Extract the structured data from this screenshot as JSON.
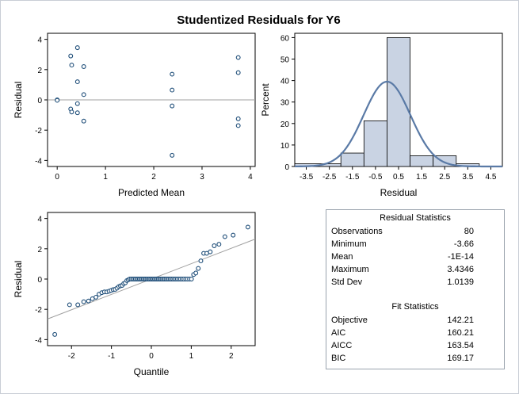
{
  "title": "Studentized Residuals for Y6",
  "colors": {
    "marker": "#1f4e79",
    "axis": "#000000",
    "ref_line": "#a0a0a0",
    "bar_fill": "#c9d3e3",
    "bar_stroke": "#000000",
    "density": "#5a7aa6"
  },
  "chart_data": [
    {
      "type": "scatter",
      "name": "residual-vs-predicted",
      "xlabel": "Predicted Mean",
      "ylabel": "Residual",
      "xlim": [
        -0.2,
        4.1
      ],
      "ylim": [
        -4.4,
        4.4
      ],
      "xticks": [
        0,
        1,
        2,
        3,
        4
      ],
      "yticks": [
        -4,
        -2,
        0,
        2,
        4
      ],
      "reference_line_y": 0,
      "points": [
        {
          "x": 0.0,
          "y": 0.0
        },
        {
          "x": 0.0,
          "y": -0.03
        },
        {
          "x": 0.28,
          "y": 2.9
        },
        {
          "x": 0.3,
          "y": 2.3
        },
        {
          "x": 0.28,
          "y": -0.6
        },
        {
          "x": 0.3,
          "y": -0.8
        },
        {
          "x": 0.42,
          "y": 3.45
        },
        {
          "x": 0.42,
          "y": 1.2
        },
        {
          "x": 0.42,
          "y": -0.25
        },
        {
          "x": 0.42,
          "y": -0.85
        },
        {
          "x": 0.55,
          "y": 2.2
        },
        {
          "x": 0.55,
          "y": 0.35
        },
        {
          "x": 0.55,
          "y": -1.4
        },
        {
          "x": 2.38,
          "y": 1.7
        },
        {
          "x": 2.38,
          "y": 0.65
        },
        {
          "x": 2.38,
          "y": -0.4
        },
        {
          "x": 2.38,
          "y": -3.66
        },
        {
          "x": 3.75,
          "y": 2.8
        },
        {
          "x": 3.75,
          "y": 1.8
        },
        {
          "x": 3.75,
          "y": -1.25
        },
        {
          "x": 3.75,
          "y": -1.7
        }
      ]
    },
    {
      "type": "bar",
      "name": "residual-histogram",
      "xlabel": "Residual",
      "ylabel": "Percent",
      "xlim": [
        -4.0,
        5.0
      ],
      "ylim": [
        0,
        62
      ],
      "xticks": [
        -3.5,
        -2.5,
        -1.5,
        -0.5,
        0.5,
        1.5,
        2.5,
        3.5,
        4.5
      ],
      "xtick_labels": [
        "-3.5",
        "-2.5",
        "-1.5",
        "-0.5",
        "0.5",
        "1.5",
        "2.5",
        "3.5",
        "4.5"
      ],
      "yticks": [
        0,
        10,
        20,
        30,
        40,
        50,
        60
      ],
      "bins": [
        {
          "from": -4.0,
          "to": -2.0,
          "value": 1.25
        },
        {
          "from": -2.0,
          "to": -1.0,
          "value": 6.25
        },
        {
          "from": -1.0,
          "to": 0.0,
          "value": 21.25
        },
        {
          "from": 0.0,
          "to": 1.0,
          "value": 60.0
        },
        {
          "from": 1.0,
          "to": 2.0,
          "value": 5.0
        },
        {
          "from": 2.0,
          "to": 3.0,
          "value": 5.0
        },
        {
          "from": 3.0,
          "to": 4.0,
          "value": 1.25
        }
      ],
      "density": {
        "mean": 0.0,
        "sd": 1.0139,
        "peak_percent": 39.5
      }
    },
    {
      "type": "scatter",
      "name": "qq-plot",
      "xlabel": "Quantile",
      "ylabel": "Residual",
      "xlim": [
        -2.6,
        2.6
      ],
      "ylim": [
        -4.4,
        4.4
      ],
      "xticks": [
        -2,
        -1,
        0,
        1,
        2
      ],
      "yticks": [
        -4,
        -2,
        0,
        2,
        4
      ],
      "reference_line": {
        "x1": -2.6,
        "y1": -2.64,
        "x2": 2.6,
        "y2": 2.64
      }
    }
  ],
  "residual_statistics": {
    "title": "Residual Statistics",
    "rows": [
      {
        "label": "Observations",
        "value": "80"
      },
      {
        "label": "Minimum",
        "value": "-3.66"
      },
      {
        "label": "Mean",
        "value": "-1E-14"
      },
      {
        "label": "Maximum",
        "value": "3.4346"
      },
      {
        "label": "Std Dev",
        "value": "1.0139"
      }
    ]
  },
  "fit_statistics": {
    "title": "Fit Statistics",
    "rows": [
      {
        "label": "Objective",
        "value": "142.21"
      },
      {
        "label": "AIC",
        "value": "160.21"
      },
      {
        "label": "AICC",
        "value": "163.54"
      },
      {
        "label": "BIC",
        "value": "169.17"
      }
    ]
  }
}
